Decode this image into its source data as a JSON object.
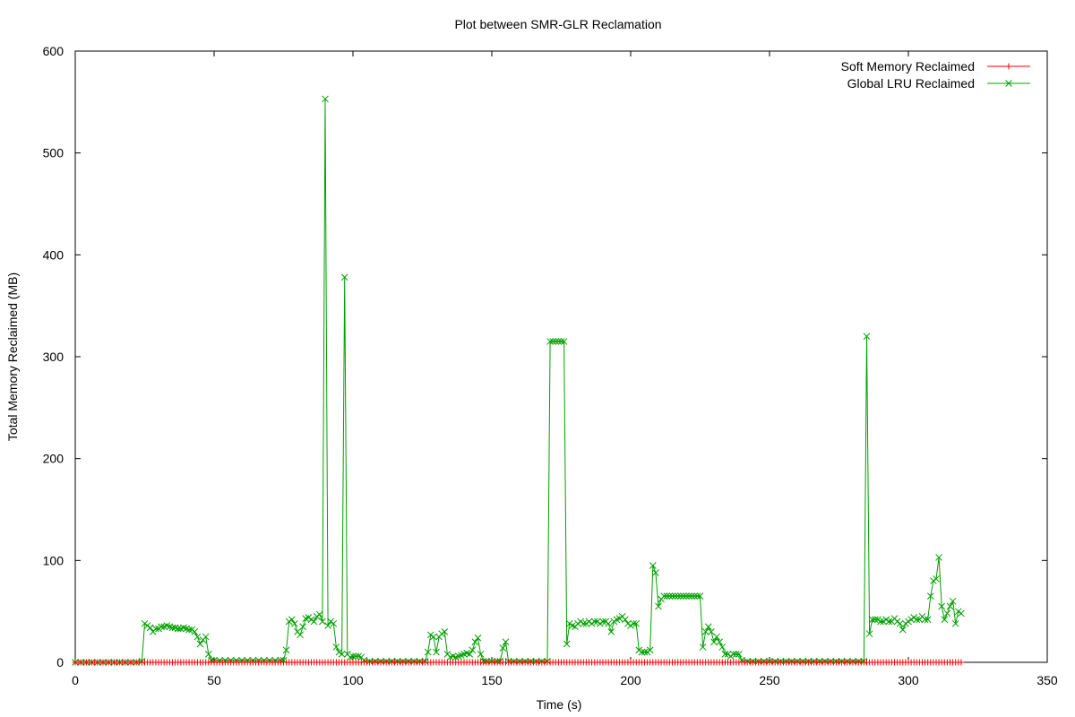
{
  "chart_data": {
    "type": "line",
    "title": "Plot between SMR-GLR Reclamation",
    "xlabel": "Time (s)",
    "ylabel": "Total Memory Reclaimed (MB)",
    "xlim": [
      0,
      350
    ],
    "ylim": [
      0,
      600
    ],
    "xticks": [
      0,
      50,
      100,
      150,
      200,
      250,
      300,
      350
    ],
    "yticks": [
      0,
      100,
      200,
      300,
      400,
      500,
      600
    ],
    "grid": false,
    "legend_position": "top-right",
    "series": [
      {
        "name": "Soft Memory Reclaimed",
        "color": "#ff0000",
        "marker": "plus",
        "x_start": 0,
        "x_end": 319,
        "x_step": 1,
        "value": 0
      },
      {
        "name": "Global LRU Reclaimed",
        "color": "#00a000",
        "marker": "cross",
        "points": [
          [
            0,
            0
          ],
          [
            2,
            0
          ],
          [
            4,
            0
          ],
          [
            6,
            0
          ],
          [
            8,
            0
          ],
          [
            10,
            0
          ],
          [
            12,
            0
          ],
          [
            14,
            0
          ],
          [
            16,
            0
          ],
          [
            18,
            0
          ],
          [
            20,
            0
          ],
          [
            22,
            0
          ],
          [
            24,
            1
          ],
          [
            25,
            38
          ],
          [
            26,
            36
          ],
          [
            27,
            34
          ],
          [
            28,
            30
          ],
          [
            29,
            33
          ],
          [
            30,
            33
          ],
          [
            31,
            35
          ],
          [
            32,
            35
          ],
          [
            33,
            36
          ],
          [
            34,
            35
          ],
          [
            35,
            34
          ],
          [
            36,
            34
          ],
          [
            37,
            33
          ],
          [
            38,
            33
          ],
          [
            39,
            34
          ],
          [
            40,
            33
          ],
          [
            41,
            32
          ],
          [
            42,
            32
          ],
          [
            43,
            30
          ],
          [
            44,
            25
          ],
          [
            45,
            18
          ],
          [
            46,
            22
          ],
          [
            47,
            25
          ],
          [
            48,
            8
          ],
          [
            49,
            2
          ],
          [
            50,
            2
          ],
          [
            52,
            2
          ],
          [
            54,
            2
          ],
          [
            56,
            2
          ],
          [
            58,
            2
          ],
          [
            60,
            2
          ],
          [
            62,
            2
          ],
          [
            64,
            2
          ],
          [
            66,
            2
          ],
          [
            68,
            2
          ],
          [
            70,
            2
          ],
          [
            72,
            2
          ],
          [
            74,
            2
          ],
          [
            75,
            2
          ],
          [
            76,
            12
          ],
          [
            77,
            40
          ],
          [
            78,
            42
          ],
          [
            79,
            38
          ],
          [
            80,
            30
          ],
          [
            81,
            27
          ],
          [
            82,
            35
          ],
          [
            83,
            43
          ],
          [
            84,
            44
          ],
          [
            85,
            42
          ],
          [
            86,
            40
          ],
          [
            87,
            45
          ],
          [
            88,
            47
          ],
          [
            89,
            40
          ],
          [
            90,
            553
          ],
          [
            91,
            36
          ],
          [
            92,
            40
          ],
          [
            93,
            38
          ],
          [
            94,
            15
          ],
          [
            95,
            10
          ],
          [
            96,
            8
          ],
          [
            97,
            378
          ],
          [
            98,
            8
          ],
          [
            99,
            5
          ],
          [
            100,
            6
          ],
          [
            101,
            6
          ],
          [
            102,
            6
          ],
          [
            103,
            5
          ],
          [
            104,
            2
          ],
          [
            106,
            1
          ],
          [
            108,
            1
          ],
          [
            110,
            1
          ],
          [
            112,
            1
          ],
          [
            114,
            1
          ],
          [
            116,
            1
          ],
          [
            118,
            1
          ],
          [
            120,
            1
          ],
          [
            122,
            1
          ],
          [
            124,
            1
          ],
          [
            126,
            1
          ],
          [
            127,
            10
          ],
          [
            128,
            27
          ],
          [
            129,
            25
          ],
          [
            130,
            10
          ],
          [
            131,
            25
          ],
          [
            132,
            28
          ],
          [
            133,
            30
          ],
          [
            134,
            8
          ],
          [
            135,
            5
          ],
          [
            136,
            6
          ],
          [
            137,
            5
          ],
          [
            138,
            6
          ],
          [
            139,
            7
          ],
          [
            140,
            8
          ],
          [
            141,
            9
          ],
          [
            142,
            8
          ],
          [
            143,
            12
          ],
          [
            144,
            20
          ],
          [
            145,
            24
          ],
          [
            146,
            8
          ],
          [
            147,
            1
          ],
          [
            148,
            1
          ],
          [
            150,
            1
          ],
          [
            152,
            1
          ],
          [
            153,
            1
          ],
          [
            154,
            14
          ],
          [
            155,
            20
          ],
          [
            156,
            1
          ],
          [
            158,
            1
          ],
          [
            160,
            1
          ],
          [
            162,
            1
          ],
          [
            164,
            1
          ],
          [
            166,
            1
          ],
          [
            168,
            1
          ],
          [
            170,
            1
          ],
          [
            171,
            315
          ],
          [
            172,
            315
          ],
          [
            173,
            315
          ],
          [
            174,
            315
          ],
          [
            175,
            315
          ],
          [
            176,
            315
          ],
          [
            177,
            18
          ],
          [
            178,
            38
          ],
          [
            179,
            36
          ],
          [
            180,
            35
          ],
          [
            181,
            38
          ],
          [
            182,
            40
          ],
          [
            183,
            38
          ],
          [
            184,
            38
          ],
          [
            185,
            40
          ],
          [
            186,
            38
          ],
          [
            187,
            40
          ],
          [
            188,
            40
          ],
          [
            189,
            38
          ],
          [
            190,
            40
          ],
          [
            191,
            40
          ],
          [
            192,
            38
          ],
          [
            193,
            30
          ],
          [
            194,
            40
          ],
          [
            195,
            42
          ],
          [
            196,
            43
          ],
          [
            197,
            45
          ],
          [
            198,
            42
          ],
          [
            199,
            38
          ],
          [
            200,
            36
          ],
          [
            201,
            38
          ],
          [
            202,
            38
          ],
          [
            203,
            12
          ],
          [
            204,
            10
          ],
          [
            205,
            10
          ],
          [
            206,
            10
          ],
          [
            207,
            12
          ],
          [
            208,
            95
          ],
          [
            209,
            88
          ],
          [
            210,
            55
          ],
          [
            211,
            62
          ],
          [
            212,
            65
          ],
          [
            213,
            65
          ],
          [
            214,
            65
          ],
          [
            215,
            65
          ],
          [
            216,
            65
          ],
          [
            217,
            65
          ],
          [
            218,
            65
          ],
          [
            219,
            65
          ],
          [
            220,
            65
          ],
          [
            221,
            65
          ],
          [
            222,
            65
          ],
          [
            223,
            65
          ],
          [
            224,
            65
          ],
          [
            225,
            65
          ],
          [
            226,
            15
          ],
          [
            227,
            30
          ],
          [
            228,
            35
          ],
          [
            229,
            30
          ],
          [
            230,
            20
          ],
          [
            231,
            25
          ],
          [
            232,
            20
          ],
          [
            233,
            15
          ],
          [
            234,
            8
          ],
          [
            235,
            8
          ],
          [
            236,
            6
          ],
          [
            237,
            8
          ],
          [
            238,
            8
          ],
          [
            239,
            8
          ],
          [
            240,
            2
          ],
          [
            242,
            1
          ],
          [
            244,
            1
          ],
          [
            246,
            1
          ],
          [
            248,
            1
          ],
          [
            250,
            1
          ],
          [
            252,
            1
          ],
          [
            254,
            1
          ],
          [
            256,
            1
          ],
          [
            258,
            1
          ],
          [
            260,
            1
          ],
          [
            262,
            1
          ],
          [
            264,
            1
          ],
          [
            266,
            1
          ],
          [
            268,
            1
          ],
          [
            270,
            1
          ],
          [
            272,
            1
          ],
          [
            274,
            1
          ],
          [
            276,
            1
          ],
          [
            278,
            1
          ],
          [
            280,
            1
          ],
          [
            282,
            1
          ],
          [
            284,
            1
          ],
          [
            285,
            320
          ],
          [
            286,
            28
          ],
          [
            287,
            42
          ],
          [
            288,
            42
          ],
          [
            289,
            42
          ],
          [
            290,
            40
          ],
          [
            291,
            40
          ],
          [
            292,
            42
          ],
          [
            293,
            40
          ],
          [
            294,
            40
          ],
          [
            295,
            43
          ],
          [
            296,
            40
          ],
          [
            297,
            38
          ],
          [
            298,
            32
          ],
          [
            299,
            38
          ],
          [
            300,
            40
          ],
          [
            301,
            42
          ],
          [
            302,
            44
          ],
          [
            303,
            42
          ],
          [
            304,
            42
          ],
          [
            305,
            45
          ],
          [
            306,
            42
          ],
          [
            307,
            42
          ],
          [
            308,
            65
          ],
          [
            309,
            80
          ],
          [
            310,
            82
          ],
          [
            311,
            103
          ],
          [
            312,
            55
          ],
          [
            313,
            42
          ],
          [
            314,
            48
          ],
          [
            315,
            55
          ],
          [
            316,
            60
          ],
          [
            317,
            38
          ],
          [
            318,
            50
          ],
          [
            319,
            48
          ]
        ]
      }
    ]
  }
}
